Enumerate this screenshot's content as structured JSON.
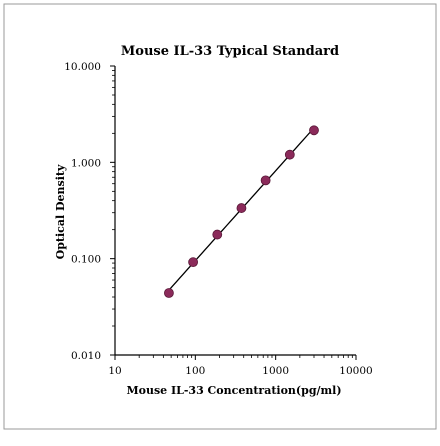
{
  "chart_data": {
    "type": "scatter",
    "title": "Mouse IL-33 Typical  Standard",
    "xlabel": "Mouse IL-33 Concentration(pg/ml)",
    "ylabel": "Optical Density",
    "x_scale": "log",
    "y_scale": "log",
    "xlim": [
      10,
      10000
    ],
    "ylim": [
      0.01,
      10
    ],
    "x_ticks": [
      "10",
      "100",
      "1000",
      "10000"
    ],
    "y_ticks": [
      "10.000",
      "1.000",
      "0.100",
      "0.010"
    ],
    "grid": false,
    "series": [
      {
        "x": [
          46.9,
          93.8,
          187.5,
          375,
          750,
          1500,
          3000
        ],
        "y": [
          0.044,
          0.092,
          0.178,
          0.335,
          0.65,
          1.2,
          2.15
        ],
        "marker_color": "#8b2a5a",
        "line_color": "#000000",
        "trendline": true
      }
    ]
  }
}
